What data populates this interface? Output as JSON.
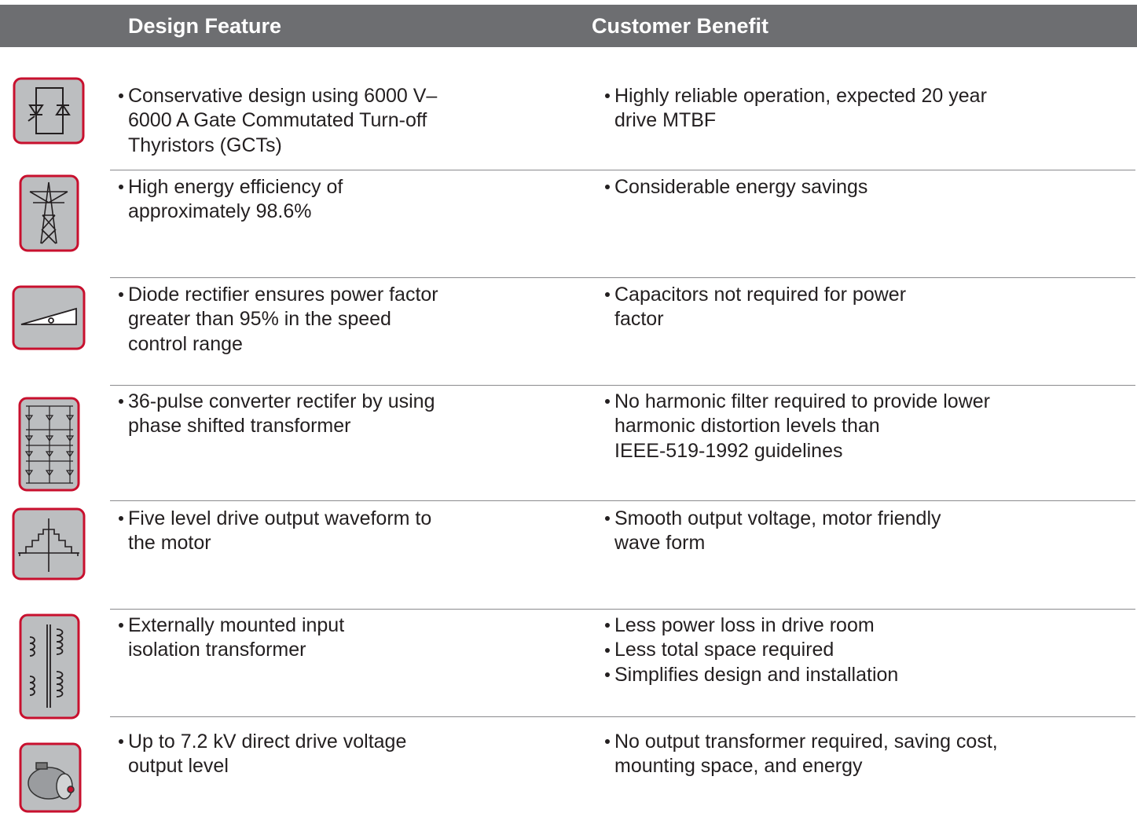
{
  "header": {
    "feature": "Design Feature",
    "benefit": "Customer Benefit"
  },
  "rows": [
    {
      "feature": [
        [
          "Conservative design using 6000 V–",
          "6000 A Gate Commutated Turn-off",
          "Thyristors (GCTs)"
        ]
      ],
      "benefits": [
        [
          "Highly reliable operation, expected 20 year",
          "drive MTBF"
        ]
      ]
    },
    {
      "feature": [
        [
          "High energy efficiency of",
          "approximately 98.6%"
        ]
      ],
      "benefits": [
        [
          "Considerable energy savings"
        ]
      ]
    },
    {
      "feature": [
        [
          "Diode rectifier ensures power factor",
          "greater than 95% in the speed",
          "control range"
        ]
      ],
      "benefits": [
        [
          "Capacitors not required for power",
          "factor"
        ]
      ]
    },
    {
      "feature": [
        [
          "36-pulse converter rectifer by using",
          "phase shifted transformer"
        ]
      ],
      "benefits": [
        [
          "No harmonic filter required to provide lower",
          "harmonic distortion levels than",
          "IEEE-519-1992 guidelines"
        ]
      ]
    },
    {
      "feature": [
        [
          "Five level drive output waveform to",
          "the motor"
        ]
      ],
      "benefits": [
        [
          "Smooth output voltage, motor friendly",
          "wave form"
        ]
      ]
    },
    {
      "feature": [
        [
          "Externally mounted input",
          "isolation transformer"
        ]
      ],
      "benefits": [
        [
          "Less power loss in drive room"
        ],
        [
          "Less total space required"
        ],
        [
          "Simplifies design and installation"
        ]
      ]
    },
    {
      "feature": [
        [
          "Up to 7.2 kV direct drive voltage",
          "output level"
        ]
      ],
      "benefits": [
        [
          "No output transformer required, saving cost,",
          "mounting space, and energy"
        ]
      ]
    }
  ]
}
